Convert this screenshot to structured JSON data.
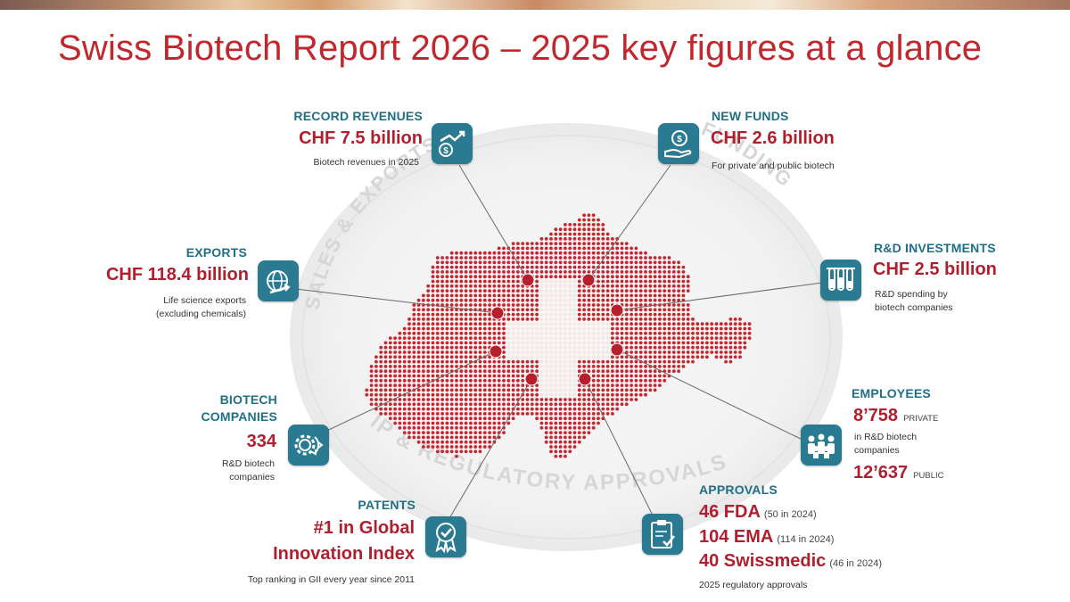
{
  "title": "Swiss Biotech Report 2026 – 2025 key figures at a glance",
  "colors": {
    "accent_red": "#c0282d",
    "figure_red": "#b01f2e",
    "teal": "#1f6f86",
    "icon_teal": "#2a7a92"
  },
  "ring_labels": {
    "sales": "SALES & EXPORTS",
    "funding": "FUNDING",
    "ip": "IP & REGULATORY APPROVALS"
  },
  "revenues": {
    "caption": "RECORD REVENUES",
    "value": "CHF 7.5 billion",
    "note": "Biotech revenues in 2025",
    "icon": "growth-coin-icon"
  },
  "funds": {
    "caption": "NEW FUNDS",
    "value": "CHF 2.6 billion",
    "note": "For private and public biotech",
    "icon": "money-hand-icon"
  },
  "exports": {
    "caption": "EXPORTS",
    "value": "CHF 118.4 billion",
    "note1": "Life science exports",
    "note2": "(excluding chemicals)",
    "icon": "globe-arrow-icon"
  },
  "rd": {
    "caption": "R&D INVESTMENTS",
    "value": "CHF 2.5 billion",
    "note1": "R&D spending by",
    "note2": "biotech companies",
    "icon": "test-tubes-icon"
  },
  "companies": {
    "caption1": "BIOTECH",
    "caption2": "COMPANIES",
    "value": "334",
    "note1": "R&D biotech",
    "note2": "companies",
    "icon": "gear-cycle-icon"
  },
  "employees": {
    "caption": "EMPLOYEES",
    "value_private": "8’758",
    "private_label": "PRIVATE",
    "note1": "in R&D biotech",
    "note2": "companies",
    "value_public": "12’637",
    "public_label": "PUBLIC",
    "icon": "people-group-icon"
  },
  "patents": {
    "caption": "PATENTS",
    "value1": "#1 in Global",
    "value2": "Innovation Index",
    "note": "Top ranking in GII every year since 2011",
    "icon": "award-badge-icon"
  },
  "approvals": {
    "caption": "APPROVALS",
    "items": [
      {
        "value": "46 FDA",
        "prev": "(50 in 2024)"
      },
      {
        "value": "104 EMA",
        "prev": "(114 in 2024)"
      },
      {
        "value": "40 Swissmedic",
        "prev": "(46 in 2024)"
      }
    ],
    "note": "2025 regulatory approvals",
    "icon": "clipboard-check-icon"
  }
}
